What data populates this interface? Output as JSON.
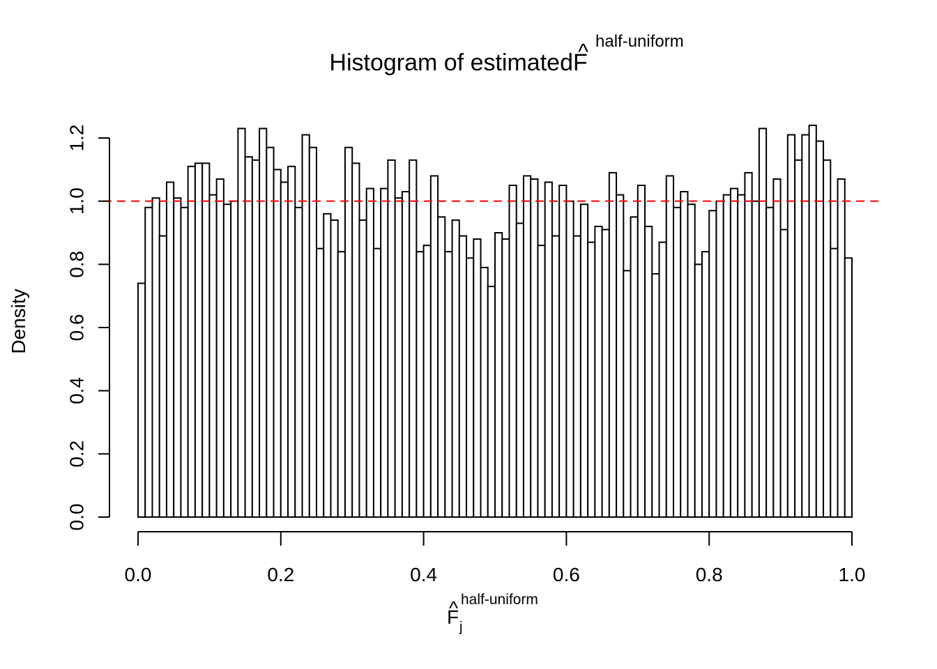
{
  "chart_data": {
    "type": "histogram",
    "title": {
      "prefix": "Histogram of estimated ",
      "symbol": "F",
      "hat": "^",
      "superscript": "half-uniform"
    },
    "xlabel": {
      "symbol": "F",
      "hat": "^",
      "subscript": "j",
      "superscript": "half-uniform"
    },
    "ylabel": "Density",
    "xlim": [
      0,
      1
    ],
    "ylim": [
      0,
      1.2
    ],
    "x_ticks": [
      "0.0",
      "0.2",
      "0.4",
      "0.6",
      "0.8",
      "1.0"
    ],
    "y_ticks": [
      "0.0",
      "0.2",
      "0.4",
      "0.6",
      "0.8",
      "1.0",
      "1.2"
    ],
    "bin_width": 0.01,
    "bin_start": 0,
    "values": [
      0.74,
      0.98,
      1.01,
      0.89,
      1.06,
      1.01,
      0.98,
      1.11,
      1.12,
      1.12,
      1.02,
      1.07,
      0.99,
      1.0,
      1.23,
      1.14,
      1.13,
      1.23,
      1.17,
      1.1,
      1.06,
      1.11,
      0.98,
      1.21,
      1.17,
      0.85,
      0.96,
      0.94,
      0.84,
      1.17,
      1.12,
      0.94,
      1.04,
      0.85,
      1.04,
      1.13,
      1.01,
      1.03,
      1.13,
      0.84,
      0.86,
      1.08,
      0.95,
      0.84,
      0.94,
      0.89,
      0.82,
      0.88,
      0.79,
      0.73,
      0.9,
      0.88,
      1.05,
      0.93,
      1.08,
      1.07,
      0.86,
      1.06,
      0.89,
      1.05,
      1.0,
      0.89,
      0.99,
      0.87,
      0.92,
      0.91,
      1.09,
      1.02,
      0.78,
      0.95,
      1.05,
      0.92,
      0.77,
      0.87,
      1.08,
      0.98,
      1.03,
      0.99,
      0.8,
      0.84,
      0.97,
      1.0,
      1.02,
      1.04,
      1.02,
      1.09,
      1.0,
      1.23,
      0.98,
      1.07,
      0.91,
      1.21,
      1.13,
      1.21,
      1.24,
      1.19,
      1.13,
      0.85,
      1.07,
      0.82
    ],
    "reference_line": {
      "y": 1.0,
      "style": "dashed",
      "color": "#ff0000"
    },
    "grid": false,
    "legend": "none"
  }
}
